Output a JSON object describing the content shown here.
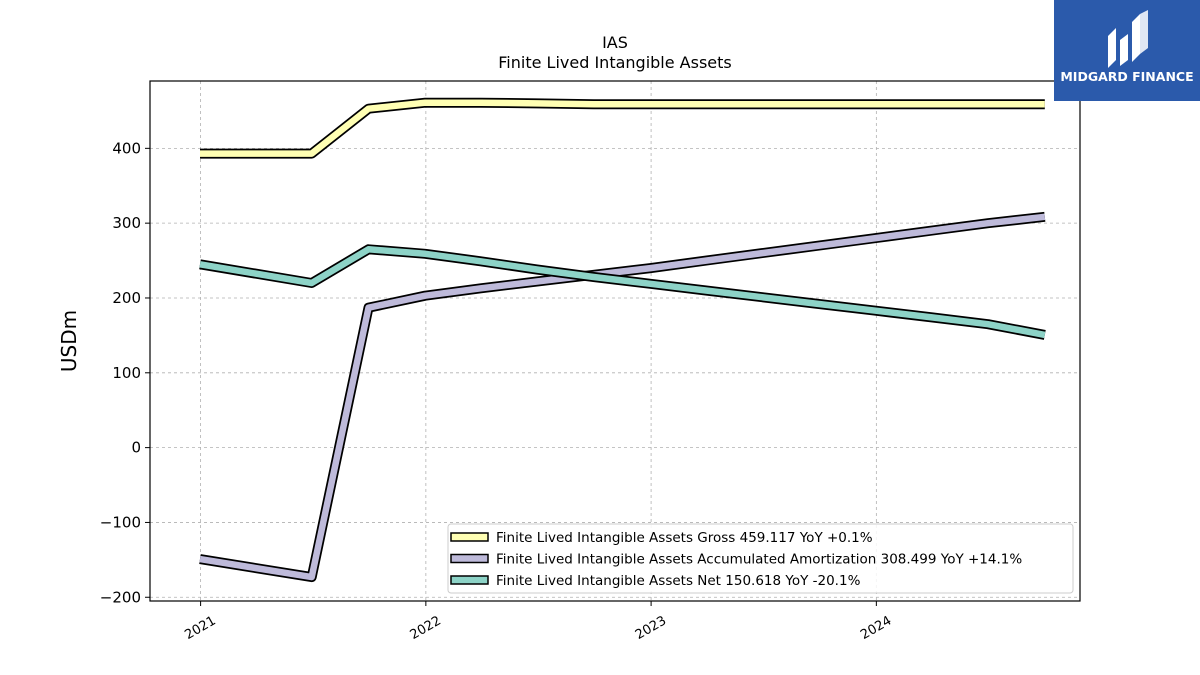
{
  "brand": {
    "name": "MIDGARD FINANCE",
    "color": "#2b5aab"
  },
  "chart_data": {
    "type": "line",
    "title": "IAS",
    "subtitle": "Finite Lived Intangible Assets",
    "ylabel": "USDm",
    "xlabel": "",
    "ylim": [
      -205,
      490
    ],
    "yticks": [
      -200,
      -100,
      0,
      100,
      200,
      300,
      400
    ],
    "yticklabels": [
      "−200",
      "−100",
      "0",
      "100",
      "200",
      "300",
      "400"
    ],
    "xlim": [
      "2020-10-11",
      "2024-11-26"
    ],
    "xticks": [
      "2021-01-01",
      "2022-01-01",
      "2023-01-01",
      "2024-01-01"
    ],
    "xticklabels": [
      "2021",
      "2022",
      "2023",
      "2024"
    ],
    "grid": true,
    "legend_position": "lower-right",
    "x": [
      "2020-12-31",
      "2021-06-30",
      "2021-09-30",
      "2021-12-31",
      "2022-03-31",
      "2022-06-30",
      "2022-09-30",
      "2022-12-31",
      "2023-03-31",
      "2023-06-30",
      "2023-09-30",
      "2023-12-31",
      "2024-03-31",
      "2024-06-30",
      "2024-09-30"
    ],
    "series": [
      {
        "name": "Finite Lived Intangible Assets Gross",
        "legend": "Finite Lived Intangible Assets Gross  459.117 YoY +0.1%",
        "color": "#ffffb3",
        "values": [
          393,
          393,
          453,
          461,
          461,
          460,
          459,
          459,
          459,
          459,
          459,
          459,
          459,
          459,
          459
        ]
      },
      {
        "name": "Finite Lived Intangible Assets Accumulated Amortization",
        "legend": "Finite Lived Intangible Assets Accumulated Amortization  308.499 YoY +14.1%",
        "color": "#bebada",
        "values": [
          -149,
          -173,
          187,
          203,
          213,
          222,
          231,
          240,
          250,
          260,
          270,
          280,
          290,
          300,
          308.5
        ]
      },
      {
        "name": "Finite Lived Intangible Assets Net",
        "legend": "Finite Lived Intangible Assets Net  150.618 YoY -20.1%",
        "color": "#8dd3c7",
        "values": [
          245,
          220,
          265,
          259,
          249,
          238,
          228,
          219,
          210,
          201,
          192,
          183,
          174,
          165,
          150.6
        ]
      }
    ]
  }
}
